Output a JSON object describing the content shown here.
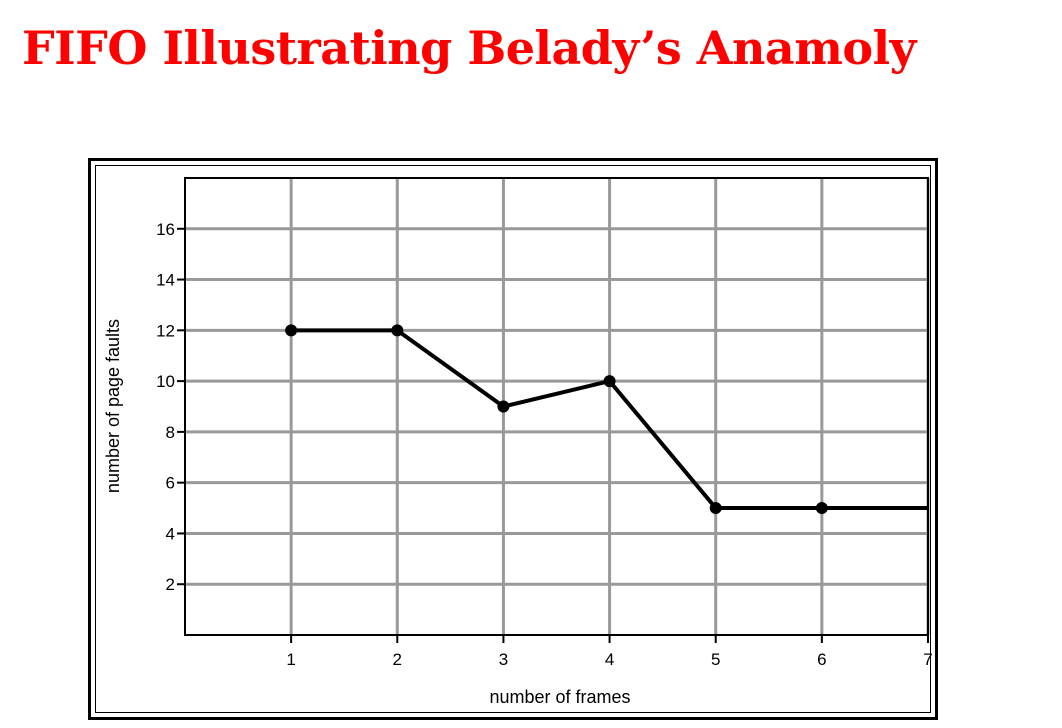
{
  "slide": {
    "title": "FIFO Illustrating Belady’s Anamoly",
    "title_color": "#ff0000"
  },
  "chart_data": {
    "type": "line",
    "title": "",
    "xlabel": "number of frames",
    "ylabel": "number of page faults",
    "x": [
      1,
      2,
      3,
      4,
      5,
      6,
      7
    ],
    "series": [
      {
        "name": "",
        "values": [
          12,
          12,
          9,
          10,
          5,
          5,
          5
        ]
      }
    ],
    "markers_on_x": [
      1,
      2,
      3,
      4,
      5,
      6
    ],
    "x_ticks": [
      "1",
      "2",
      "3",
      "4",
      "5",
      "6",
      "7"
    ],
    "y_ticks": [
      "2",
      "4",
      "6",
      "8",
      "10",
      "12",
      "14",
      "16"
    ],
    "xlim": [
      0,
      7
    ],
    "ylim": [
      0,
      18
    ],
    "grid": true,
    "grid_color": "#999999",
    "line_color": "#000000"
  }
}
